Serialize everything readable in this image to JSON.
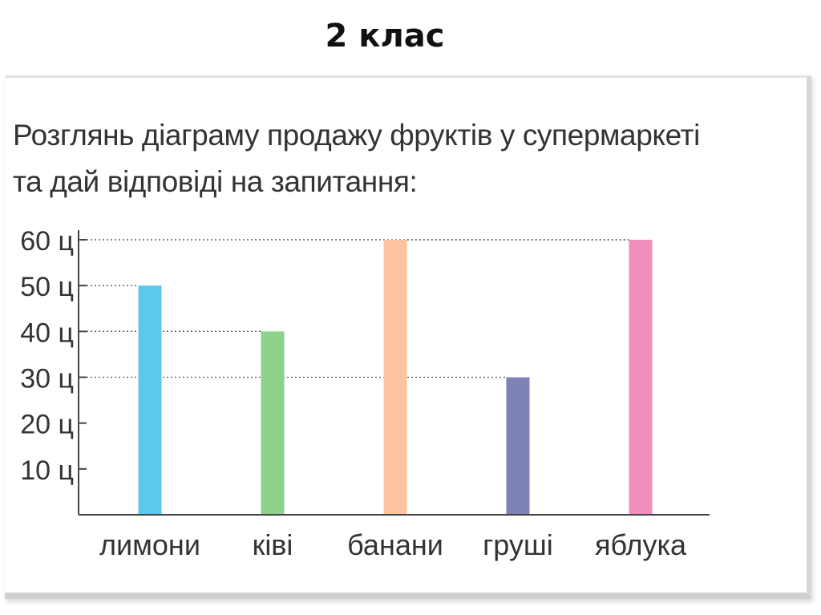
{
  "title": "2 клас",
  "prompt": {
    "line1": "Розглянь діаграму продажу фруктів у супермаркеті",
    "line2": "та дай відповіді на запитання:"
  },
  "chart_data": {
    "type": "bar",
    "categories": [
      "лимони",
      "ківі",
      "банани",
      "груші",
      "яблука"
    ],
    "values": [
      50,
      40,
      60,
      30,
      60
    ],
    "colors": [
      "#5bc8ee",
      "#8fd08c",
      "#fbc49f",
      "#7f82b5",
      "#f08fbb"
    ],
    "yticks": [
      10,
      20,
      30,
      40,
      50,
      60
    ],
    "ytick_labels": [
      "10 ц",
      "20 ц",
      "30 ц",
      "40 ц",
      "50 ц",
      "60 ц"
    ],
    "ylim": [
      0,
      60
    ],
    "grid": "dotted reference lines from axis to bar tops",
    "xlabel": "",
    "ylabel": ""
  }
}
